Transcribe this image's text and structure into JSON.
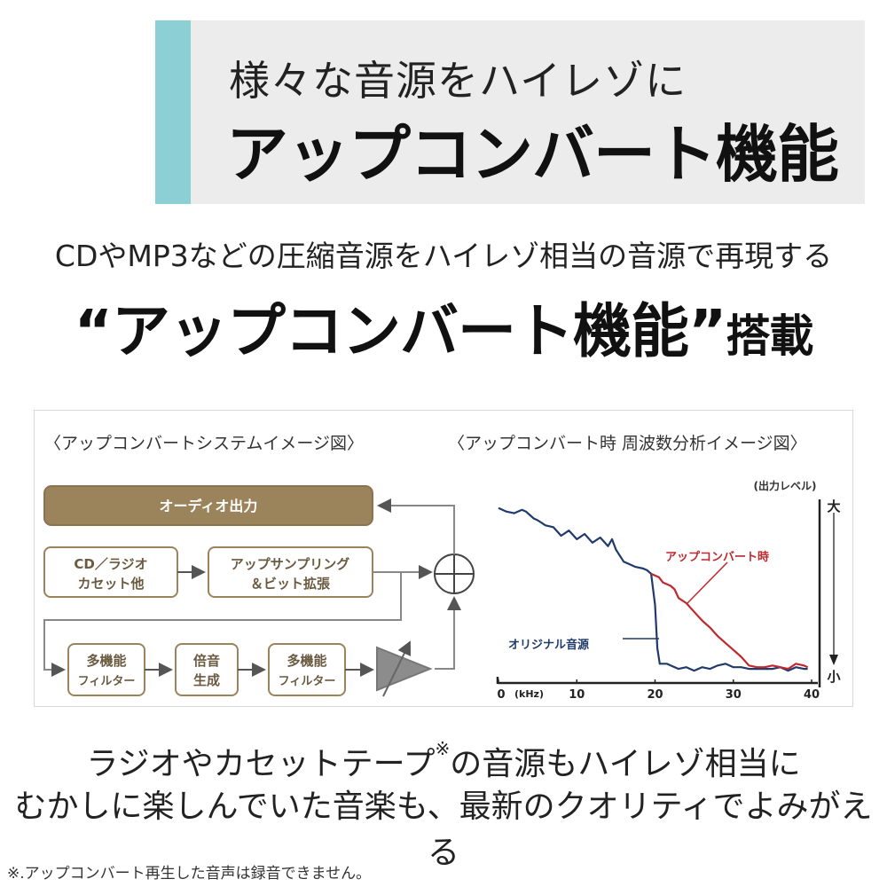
{
  "header": {
    "subtitle": "様々な音源をハイレゾに",
    "title": "アップコンバート機能",
    "accent_color": "#8ccfd4"
  },
  "lead": "CDやMP3などの圧縮音源をハイレゾ相当の音源で再現する",
  "headline": {
    "main": "“アップコンバート機能”",
    "suffix": "搭載"
  },
  "system_diagram": {
    "caption": "〈アップコンバートシステムイメージ図〉",
    "output_label": "オーディオ出力",
    "source": [
      "CD／ラジオ",
      "カセット他"
    ],
    "upsampling": [
      "アップサンプリング",
      "＆ビット拡張"
    ],
    "filter1": [
      "多機能",
      "フィルター"
    ],
    "harmonic": [
      "倍音",
      "生成"
    ],
    "filter2": [
      "多機能",
      "フィルター"
    ],
    "brand_color": "#9b835c"
  },
  "chart_data": {
    "type": "line",
    "title": "〈アップコンバート時 周波数分析イメージ図〉",
    "xlabel": "(kHz)",
    "ylabel": "(出力レベル)",
    "y_top_label": "大",
    "y_bottom_label": "小",
    "xlim": [
      0,
      40
    ],
    "ylim": [
      0,
      100
    ],
    "x_ticks": [
      "0",
      "10",
      "20",
      "30",
      "40"
    ],
    "grid": false,
    "series": [
      {
        "name": "オリジナル音源",
        "color": "#1f3a6b",
        "x": [
          0,
          1,
          2,
          3,
          3.5,
          4.5,
          5,
          6,
          7,
          8,
          9,
          10,
          11,
          12,
          13,
          14,
          14.5,
          15,
          16,
          17,
          17.5,
          18.5,
          19,
          19.5,
          20,
          20.3,
          20.6,
          21.5,
          22,
          23,
          24,
          25,
          26,
          27,
          28,
          29,
          30,
          31,
          32,
          33,
          34,
          35,
          36,
          37,
          38,
          39,
          39.5
        ],
        "y": [
          96,
          94,
          93,
          95,
          94,
          90,
          89,
          86,
          85,
          80,
          83,
          78,
          81,
          76,
          79,
          74,
          78,
          72,
          65,
          63,
          62,
          61,
          60,
          58,
          40,
          15,
          6,
          6,
          5,
          3,
          4,
          2,
          4,
          3,
          5,
          6,
          4,
          4,
          3,
          3,
          3,
          3,
          4,
          2,
          4,
          3,
          3
        ]
      },
      {
        "name": "アップコンバート時",
        "color": "#c0282d",
        "x": [
          19.5,
          20.5,
          21,
          22,
          22.5,
          23,
          24,
          25,
          26,
          27,
          28,
          29,
          30,
          31,
          32,
          33,
          34,
          35,
          36,
          37,
          38,
          39,
          39.5
        ],
        "y": [
          58,
          56,
          53,
          51,
          49,
          44,
          41,
          36,
          31,
          27,
          22,
          18,
          14,
          10,
          5,
          4,
          4,
          5,
          4,
          3,
          6,
          5,
          4
        ]
      }
    ]
  },
  "tagline": {
    "line1_a": "ラジオやカセットテープ",
    "line1_mark": "※",
    "line1_b": "の音源もハイレゾ相当に",
    "line2": "むかしに楽しんでいた音楽も、最新のクオリティでよみがえる"
  },
  "footnote": "※.アップコンバート再生した音声は録音できません。"
}
